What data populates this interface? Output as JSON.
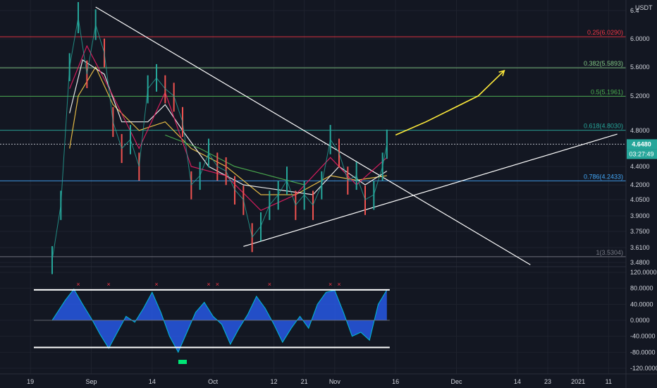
{
  "currency": "USDT",
  "chart_data": [
    {
      "type": "line",
      "price_axis": {
        "ticks": [
          "6.4",
          "6.0000",
          "5.6000",
          "5.2000",
          "4.8000",
          "4.4000",
          "4.2000",
          "4.0500",
          "3.9000",
          "3.7500",
          "3.6100",
          "3.4800"
        ],
        "tick_values": [
          6.4,
          6.0,
          5.6,
          5.2,
          4.8,
          4.4,
          4.2,
          4.05,
          3.9,
          3.75,
          3.61,
          3.48
        ]
      },
      "time_axis": {
        "ticks": [
          "19",
          "Sep",
          "14",
          "Oct",
          "12",
          "21",
          "Nov",
          "16",
          "Dec",
          "14",
          "23",
          "2021",
          "11"
        ]
      },
      "fib_levels": [
        {
          "label": "0.25(6.0290)",
          "value": 6.029,
          "color": "#f23645"
        },
        {
          "label": "0.382(5.5893)",
          "value": 5.5893,
          "color": "#81c784"
        },
        {
          "label": "0.5(5.1961)",
          "value": 5.1961,
          "color": "#4caf50"
        },
        {
          "label": "0.618(4.8030)",
          "value": 4.803,
          "color": "#26a69a"
        },
        {
          "label": "0.786(4.2433)",
          "value": 4.2433,
          "color": "#42a5f5"
        },
        {
          "label": "1(3.5304)",
          "value": 3.5304,
          "color": "#787b86"
        }
      ],
      "current_price": {
        "label": "4.6480",
        "value": 4.648,
        "countdown": "03:27:49",
        "color": "#26a69a"
      },
      "price_series": [
        {
          "x": 0,
          "y": 3.5
        },
        {
          "x": 2,
          "y": 4.0
        },
        {
          "x": 4,
          "y": 5.6
        },
        {
          "x": 6,
          "y": 6.3
        },
        {
          "x": 8,
          "y": 5.5
        },
        {
          "x": 10,
          "y": 6.2
        },
        {
          "x": 12,
          "y": 5.8
        },
        {
          "x": 14,
          "y": 4.9
        },
        {
          "x": 16,
          "y": 4.6
        },
        {
          "x": 18,
          "y": 4.7
        },
        {
          "x": 20,
          "y": 4.4
        },
        {
          "x": 22,
          "y": 5.3
        },
        {
          "x": 24,
          "y": 5.45
        },
        {
          "x": 26,
          "y": 5.3
        },
        {
          "x": 28,
          "y": 5.2
        },
        {
          "x": 30,
          "y": 4.9
        },
        {
          "x": 32,
          "y": 4.2
        },
        {
          "x": 34,
          "y": 4.3
        },
        {
          "x": 36,
          "y": 4.55
        },
        {
          "x": 38,
          "y": 4.4
        },
        {
          "x": 40,
          "y": 4.35
        },
        {
          "x": 42,
          "y": 4.15
        },
        {
          "x": 44,
          "y": 4.05
        },
        {
          "x": 46,
          "y": 3.7
        },
        {
          "x": 48,
          "y": 3.8
        },
        {
          "x": 50,
          "y": 4.0
        },
        {
          "x": 52,
          "y": 4.1
        },
        {
          "x": 54,
          "y": 4.25
        },
        {
          "x": 56,
          "y": 4.0
        },
        {
          "x": 58,
          "y": 4.1
        },
        {
          "x": 60,
          "y": 4.0
        },
        {
          "x": 62,
          "y": 4.2
        },
        {
          "x": 64,
          "y": 4.7
        },
        {
          "x": 66,
          "y": 4.55
        },
        {
          "x": 68,
          "y": 4.25
        },
        {
          "x": 70,
          "y": 4.3
        },
        {
          "x": 72,
          "y": 4.05
        },
        {
          "x": 74,
          "y": 4.1
        },
        {
          "x": 76,
          "y": 4.4
        },
        {
          "x": 77,
          "y": 4.648
        }
      ],
      "moving_averages": [
        {
          "color": "#f7c948",
          "values": [
            {
              "x": 4,
              "y": 4.6
            },
            {
              "x": 6,
              "y": 5.2
            },
            {
              "x": 10,
              "y": 5.6
            },
            {
              "x": 14,
              "y": 5.1
            },
            {
              "x": 20,
              "y": 4.8
            },
            {
              "x": 26,
              "y": 4.9
            },
            {
              "x": 32,
              "y": 4.6
            },
            {
              "x": 40,
              "y": 4.4
            },
            {
              "x": 48,
              "y": 4.1
            },
            {
              "x": 56,
              "y": 4.1
            },
            {
              "x": 64,
              "y": 4.3
            },
            {
              "x": 70,
              "y": 4.25
            },
            {
              "x": 77,
              "y": 4.3
            }
          ]
        },
        {
          "color": "#ffffff",
          "values": [
            {
              "x": 4,
              "y": 5.0
            },
            {
              "x": 7,
              "y": 5.7
            },
            {
              "x": 12,
              "y": 5.5
            },
            {
              "x": 16,
              "y": 4.9
            },
            {
              "x": 22,
              "y": 4.9
            },
            {
              "x": 26,
              "y": 5.1
            },
            {
              "x": 30,
              "y": 4.8
            },
            {
              "x": 36,
              "y": 4.4
            },
            {
              "x": 44,
              "y": 4.2
            },
            {
              "x": 52,
              "y": 4.15
            },
            {
              "x": 60,
              "y": 4.1
            },
            {
              "x": 66,
              "y": 4.4
            },
            {
              "x": 72,
              "y": 4.2
            },
            {
              "x": 77,
              "y": 4.35
            }
          ]
        },
        {
          "color": "#4caf50",
          "values": [
            {
              "x": 26,
              "y": 4.75
            },
            {
              "x": 34,
              "y": 4.6
            },
            {
              "x": 42,
              "y": 4.4
            },
            {
              "x": 50,
              "y": 4.3
            },
            {
              "x": 58,
              "y": 4.2
            }
          ]
        },
        {
          "color": "#e91e63",
          "values": [
            {
              "x": 4,
              "y": 5.3
            },
            {
              "x": 8,
              "y": 5.9
            },
            {
              "x": 14,
              "y": 5.2
            },
            {
              "x": 20,
              "y": 4.6
            },
            {
              "x": 26,
              "y": 5.25
            },
            {
              "x": 32,
              "y": 4.4
            },
            {
              "x": 40,
              "y": 4.3
            },
            {
              "x": 48,
              "y": 3.95
            },
            {
              "x": 56,
              "y": 4.1
            },
            {
              "x": 64,
              "y": 4.5
            },
            {
              "x": 70,
              "y": 4.2
            },
            {
              "x": 77,
              "y": 4.5
            }
          ]
        }
      ],
      "trendlines": [
        {
          "color": "#ffffff",
          "points": [
            {
              "x": 10,
              "y": 6.45
            },
            {
              "x": 110,
              "y": 3.46
            }
          ]
        },
        {
          "color": "#ffffff",
          "points": [
            {
              "x": 44,
              "y": 3.62
            },
            {
              "x": 130,
              "y": 4.76
            }
          ]
        }
      ],
      "projection_arrow": {
        "color": "#ffeb3b",
        "points": [
          {
            "x": 79,
            "y": 4.75
          },
          {
            "x": 86,
            "y": 4.9
          },
          {
            "x": 92,
            "y": 5.05
          },
          {
            "x": 98,
            "y": 5.2
          },
          {
            "x": 104,
            "y": 5.55
          }
        ]
      }
    },
    {
      "type": "area",
      "value_axis": {
        "ticks": [
          "120.0000",
          "80.0000",
          "40.0000",
          "0.0000",
          "-40.0000",
          "-80.0000",
          "-120.0000"
        ],
        "tick_values": [
          120,
          80,
          40,
          0,
          -40,
          -80,
          -120
        ]
      },
      "upper_band": 76,
      "lower_band": -68,
      "oscillator": [
        {
          "x": 0,
          "y": 0
        },
        {
          "x": 3,
          "y": 50
        },
        {
          "x": 5,
          "y": 78
        },
        {
          "x": 7,
          "y": 40
        },
        {
          "x": 9,
          "y": 5
        },
        {
          "x": 11,
          "y": -35
        },
        {
          "x": 13,
          "y": -70
        },
        {
          "x": 15,
          "y": -30
        },
        {
          "x": 17,
          "y": 10
        },
        {
          "x": 19,
          "y": -5
        },
        {
          "x": 21,
          "y": 30
        },
        {
          "x": 23,
          "y": 70
        },
        {
          "x": 25,
          "y": 20
        },
        {
          "x": 27,
          "y": -40
        },
        {
          "x": 29,
          "y": -80
        },
        {
          "x": 31,
          "y": -30
        },
        {
          "x": 33,
          "y": 20
        },
        {
          "x": 35,
          "y": 45
        },
        {
          "x": 37,
          "y": 10
        },
        {
          "x": 39,
          "y": -10
        },
        {
          "x": 41,
          "y": -60
        },
        {
          "x": 43,
          "y": -20
        },
        {
          "x": 45,
          "y": 15
        },
        {
          "x": 47,
          "y": 60
        },
        {
          "x": 49,
          "y": 30
        },
        {
          "x": 51,
          "y": -10
        },
        {
          "x": 53,
          "y": -55
        },
        {
          "x": 55,
          "y": -20
        },
        {
          "x": 57,
          "y": 10
        },
        {
          "x": 59,
          "y": -20
        },
        {
          "x": 61,
          "y": 40
        },
        {
          "x": 63,
          "y": 70
        },
        {
          "x": 65,
          "y": 75
        },
        {
          "x": 67,
          "y": 20
        },
        {
          "x": 69,
          "y": -40
        },
        {
          "x": 71,
          "y": -30
        },
        {
          "x": 73,
          "y": -50
        },
        {
          "x": 75,
          "y": 40
        },
        {
          "x": 77,
          "y": 76
        }
      ],
      "sell_signals_x": [
        6,
        13,
        24,
        36,
        38,
        50,
        64,
        66
      ],
      "buy_signal_x": [
        30
      ]
    }
  ]
}
